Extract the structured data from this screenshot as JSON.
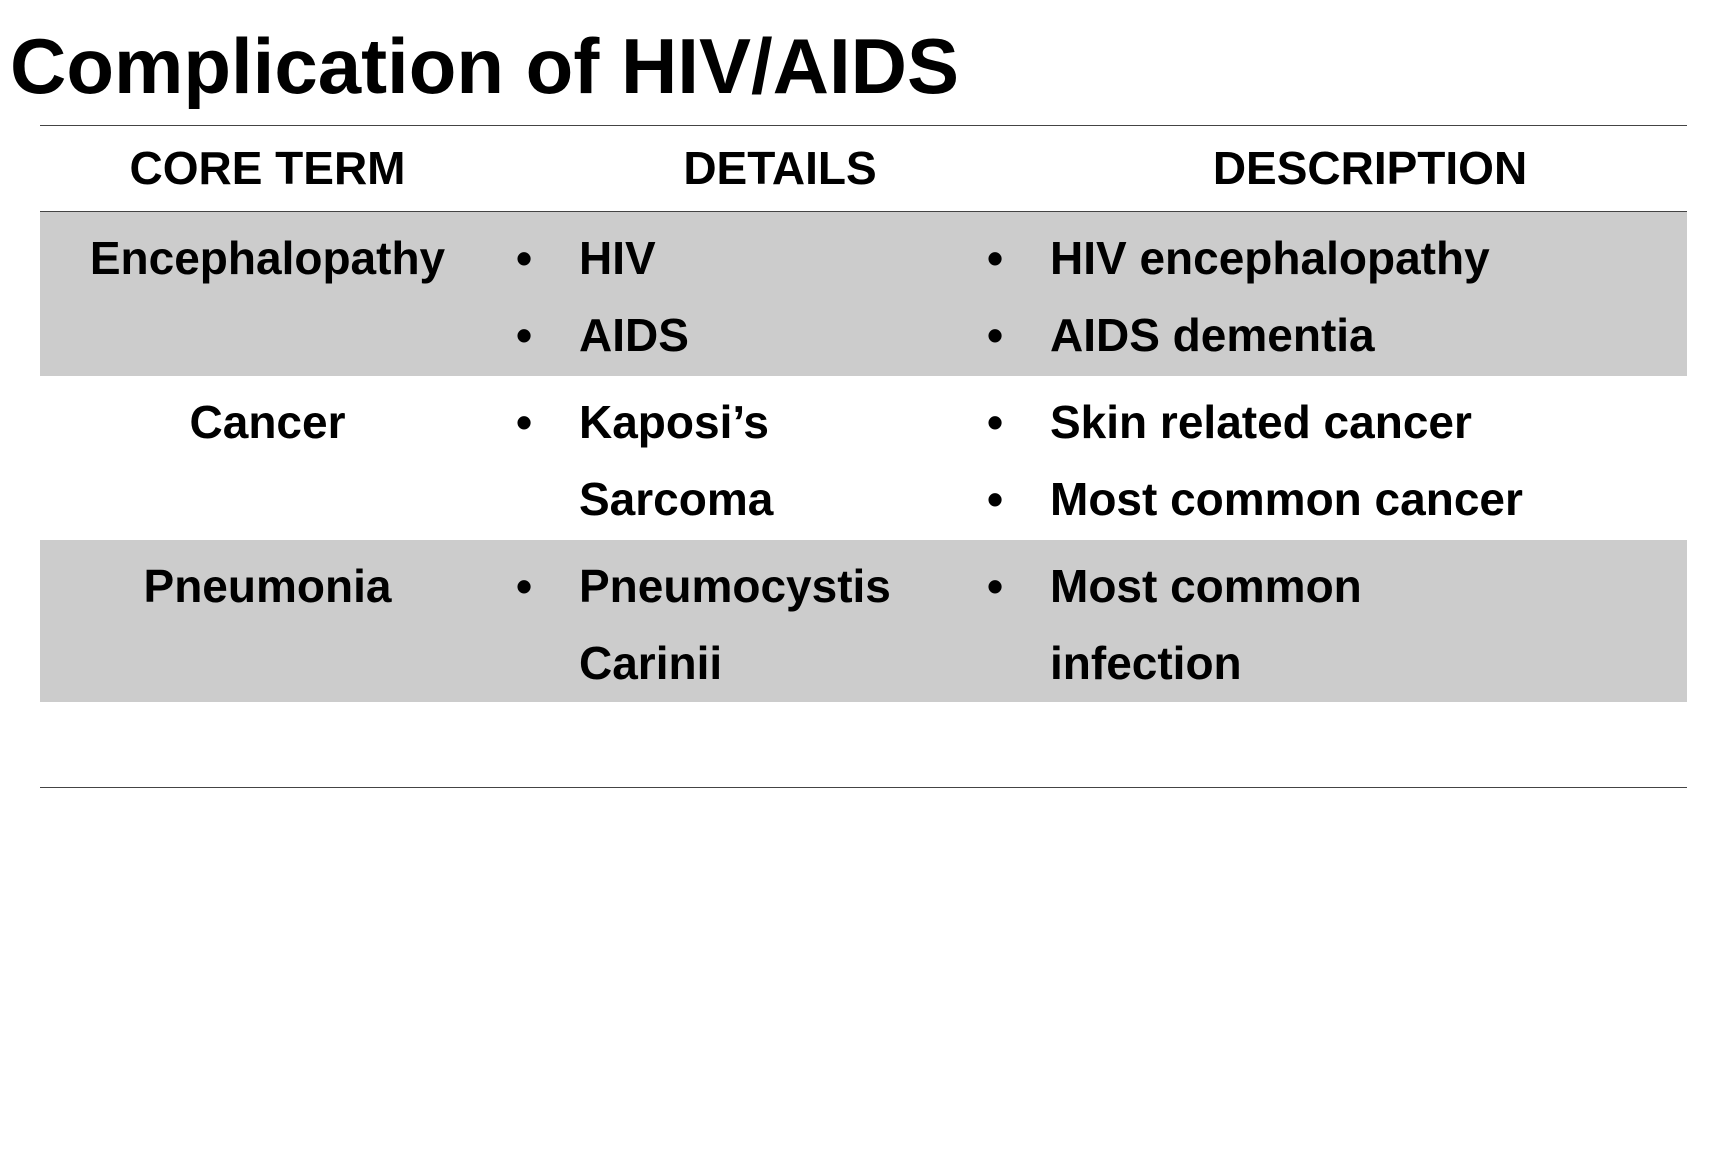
{
  "title": "Complication of HIV/AIDS",
  "table": {
    "headers": [
      "CORE TERM",
      "DETAILS",
      "DESCRIPTION"
    ],
    "rows": [
      {
        "term": "Encephalopathy",
        "details": [
          "HIV",
          "AIDS"
        ],
        "description": [
          "HIV encephalopathy",
          "AIDS dementia"
        ]
      },
      {
        "term": "Cancer",
        "details": [
          "Kaposi’s Sarcoma"
        ],
        "description": [
          "Skin related cancer",
          "Most common cancer"
        ]
      },
      {
        "term": "Pneumonia",
        "details": [
          "Pneumocystis Carinii"
        ],
        "description": [
          "Most common infection"
        ]
      }
    ]
  }
}
